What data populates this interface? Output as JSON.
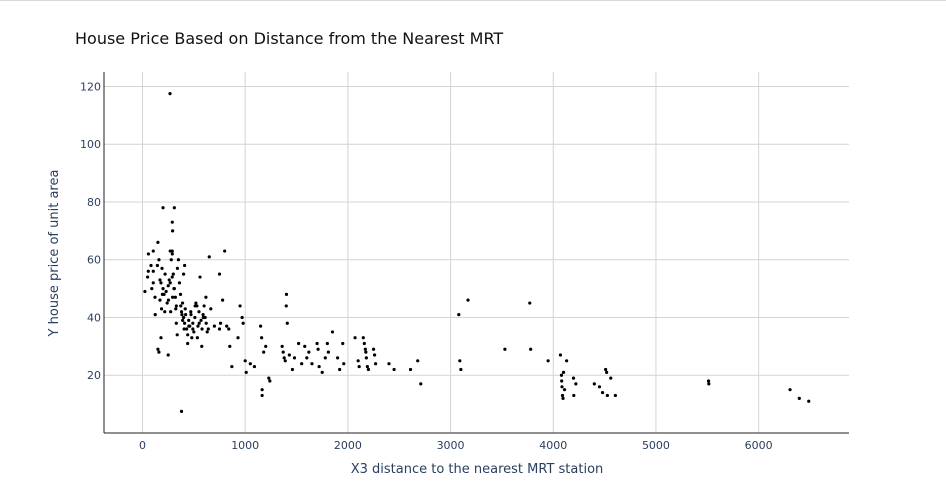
{
  "chart_data": {
    "type": "scatter",
    "title": "House Price Based on Distance from the Nearest MRT",
    "xlabel": "X3 distance to the nearest MRT station",
    "ylabel": "Y house price of unit area",
    "xlim": [
      -375,
      6880
    ],
    "ylim": [
      0,
      125
    ],
    "xticks": [
      0,
      1000,
      2000,
      3000,
      4000,
      5000,
      6000
    ],
    "yticks": [
      20,
      40,
      60,
      80,
      100,
      120
    ],
    "grid": true,
    "marker_color": "#000000",
    "series": [
      {
        "points": [
          [
            23.4,
            49
          ],
          [
            49.7,
            54
          ],
          [
            56.5,
            56
          ],
          [
            57.6,
            62
          ],
          [
            82.9,
            58
          ],
          [
            90.5,
            50
          ],
          [
            104.8,
            63
          ],
          [
            104.8,
            52
          ],
          [
            121.6,
            47
          ],
          [
            123.7,
            41
          ],
          [
            170.1,
            46
          ],
          [
            185.4,
            43
          ],
          [
            193.6,
            48
          ],
          [
            216.8,
            42
          ],
          [
            250.6,
            51
          ],
          [
            252.6,
            46
          ],
          [
            274.0,
            42
          ],
          [
            289.3,
            54
          ],
          [
            292.9,
            47
          ],
          [
            306.6,
            50
          ],
          [
            323.7,
            43
          ],
          [
            329.0,
            38
          ],
          [
            338.0,
            34
          ],
          [
            372.6,
            44
          ],
          [
            383.9,
            41
          ],
          [
            390.6,
            39
          ],
          [
            405.2,
            36
          ],
          [
            416.0,
            43
          ],
          [
            439.7,
            31
          ],
          [
            451.6,
            37
          ],
          [
            472.2,
            41
          ],
          [
            490.3,
            36
          ],
          [
            512.5,
            44
          ],
          [
            534.2,
            33
          ],
          [
            552.4,
            38
          ],
          [
            577.0,
            30
          ],
          [
            592.5,
            40
          ],
          [
            617.4,
            47
          ],
          [
            640.7,
            36
          ],
          [
            665.1,
            43
          ],
          [
            104.8,
            56
          ],
          [
            145.0,
            58
          ],
          [
            150.0,
            66
          ],
          [
            160.0,
            60
          ],
          [
            170.0,
            53
          ],
          [
            180.0,
            52
          ],
          [
            190.0,
            57
          ],
          [
            200.0,
            50
          ],
          [
            210.0,
            48
          ],
          [
            220.0,
            55
          ],
          [
            230.0,
            49
          ],
          [
            240.0,
            45
          ],
          [
            260.0,
            53
          ],
          [
            270.0,
            52
          ],
          [
            280.0,
            60
          ],
          [
            290.0,
            62
          ],
          [
            300.0,
            55
          ],
          [
            310.0,
            50
          ],
          [
            320.0,
            47
          ],
          [
            330.0,
            44
          ],
          [
            340.0,
            57
          ],
          [
            350.0,
            60
          ],
          [
            360.0,
            52
          ],
          [
            370.0,
            48
          ],
          [
            380.0,
            42
          ],
          [
            390.0,
            45
          ],
          [
            400.0,
            40
          ],
          [
            410.0,
            38
          ],
          [
            420.0,
            41
          ],
          [
            430.0,
            36
          ],
          [
            440.0,
            34
          ],
          [
            450.0,
            39
          ],
          [
            460.0,
            37
          ],
          [
            470.0,
            42
          ],
          [
            480.0,
            33
          ],
          [
            490.0,
            38
          ],
          [
            500.0,
            35
          ],
          [
            510.0,
            40
          ],
          [
            520.0,
            45
          ],
          [
            530.0,
            44
          ],
          [
            540.0,
            37
          ],
          [
            550.0,
            42
          ],
          [
            560.0,
            54
          ],
          [
            570.0,
            39
          ],
          [
            580.0,
            36
          ],
          [
            590.0,
            41
          ],
          [
            600.0,
            44
          ],
          [
            610.0,
            40
          ],
          [
            620.0,
            38
          ],
          [
            630.0,
            35
          ],
          [
            200.0,
            78
          ],
          [
            310.0,
            78
          ],
          [
            268.0,
            117.5
          ],
          [
            290.0,
            73
          ],
          [
            293.0,
            70
          ],
          [
            290.0,
            63
          ],
          [
            270.0,
            63
          ],
          [
            400.0,
            55
          ],
          [
            410.0,
            58
          ],
          [
            650.0,
            61
          ],
          [
            750.0,
            55
          ],
          [
            800.0,
            63
          ],
          [
            700.0,
            37
          ],
          [
            750.0,
            36
          ],
          [
            760.0,
            38
          ],
          [
            780.0,
            46
          ],
          [
            820.0,
            37
          ],
          [
            840.0,
            36
          ],
          [
            850.0,
            30
          ],
          [
            870.0,
            23
          ],
          [
            930.0,
            33
          ],
          [
            950.0,
            44
          ],
          [
            970.0,
            40
          ],
          [
            980.0,
            38
          ],
          [
            1000.0,
            25
          ],
          [
            1010.0,
            21
          ],
          [
            1050.0,
            24
          ],
          [
            1090.0,
            23
          ],
          [
            1150.0,
            37
          ],
          [
            1160.0,
            33
          ],
          [
            1164.8,
            15
          ],
          [
            1164.8,
            13
          ],
          [
            1180.0,
            28
          ],
          [
            1200.0,
            30
          ],
          [
            1230.0,
            19
          ],
          [
            1240.0,
            18
          ],
          [
            1360.0,
            30
          ],
          [
            1370.0,
            28
          ],
          [
            1380.0,
            26
          ],
          [
            1390.0,
            25
          ],
          [
            1400.0,
            44
          ],
          [
            1402.0,
            48
          ],
          [
            1410.0,
            38
          ],
          [
            1430.0,
            27
          ],
          [
            1460.0,
            22
          ],
          [
            1480.0,
            26
          ],
          [
            1520.0,
            31
          ],
          [
            1550.0,
            24
          ],
          [
            1580.0,
            30
          ],
          [
            1600.0,
            26
          ],
          [
            1620.0,
            28
          ],
          [
            1650.0,
            24
          ],
          [
            1700.0,
            31
          ],
          [
            1710.0,
            29
          ],
          [
            1720.0,
            23
          ],
          [
            1750.0,
            21
          ],
          [
            1780.0,
            26
          ],
          [
            1800.0,
            31
          ],
          [
            1810.0,
            28
          ],
          [
            1850.0,
            35
          ],
          [
            1900.0,
            26
          ],
          [
            1920.0,
            22
          ],
          [
            1950.0,
            31
          ],
          [
            1960.0,
            24
          ],
          [
            2070.0,
            33
          ],
          [
            2100.0,
            25
          ],
          [
            2110.0,
            23
          ],
          [
            2150.0,
            33
          ],
          [
            2160.0,
            31
          ],
          [
            2170.0,
            29
          ],
          [
            2175.0,
            28
          ],
          [
            2180.0,
            26
          ],
          [
            2190.0,
            23
          ],
          [
            2200.0,
            22
          ],
          [
            2250.0,
            29
          ],
          [
            2260.0,
            27
          ],
          [
            2270.0,
            24
          ],
          [
            2400.0,
            24
          ],
          [
            2450.0,
            22
          ],
          [
            2610.0,
            22
          ],
          [
            2680.0,
            25
          ],
          [
            2710.0,
            17
          ],
          [
            3080.0,
            41
          ],
          [
            3090.0,
            25
          ],
          [
            3100.0,
            22
          ],
          [
            3170.0,
            46
          ],
          [
            3529.0,
            29
          ],
          [
            3771.0,
            45
          ],
          [
            3780.0,
            29
          ],
          [
            3950.0,
            25
          ],
          [
            4070.0,
            27
          ],
          [
            4080.0,
            20
          ],
          [
            4082.0,
            18
          ],
          [
            4085.0,
            16
          ],
          [
            4090.0,
            13
          ],
          [
            4095.0,
            12
          ],
          [
            4100.0,
            21
          ],
          [
            4110.0,
            15
          ],
          [
            4130.0,
            25
          ],
          [
            4197.0,
            19
          ],
          [
            4200.0,
            13
          ],
          [
            4220.0,
            17
          ],
          [
            4400.0,
            17
          ],
          [
            4450.0,
            16
          ],
          [
            4480.0,
            14
          ],
          [
            4510.0,
            22
          ],
          [
            4520.0,
            21
          ],
          [
            4527.0,
            13
          ],
          [
            4560.0,
            19
          ],
          [
            4605.0,
            13
          ],
          [
            5512.0,
            18
          ],
          [
            5515.0,
            17
          ],
          [
            6306.0,
            15
          ],
          [
            6396.0,
            12
          ],
          [
            6488.0,
            11
          ],
          [
            380.0,
            7.5
          ],
          [
            150.0,
            29
          ],
          [
            160.0,
            28
          ],
          [
            180.0,
            33
          ],
          [
            250.0,
            27
          ]
        ]
      }
    ]
  }
}
